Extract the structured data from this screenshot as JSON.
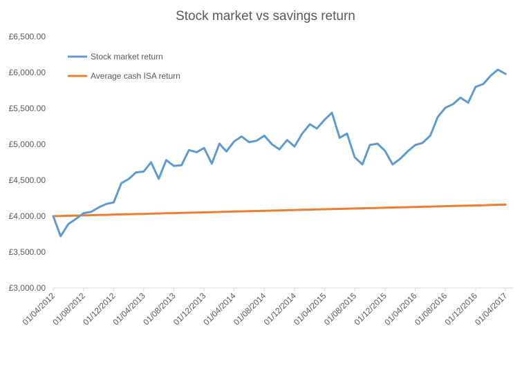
{
  "chart_data": {
    "type": "line",
    "title": "Stock market vs savings return",
    "xlabel": "",
    "ylabel": "",
    "ylim": [
      3000,
      6500
    ],
    "yticks": [
      3000,
      3500,
      4000,
      4500,
      5000,
      5500,
      6000,
      6500
    ],
    "ytick_labels": [
      "£3,000.00",
      "£3,500.00",
      "£4,000.00",
      "£4,500.00",
      "£5,000.00",
      "£5,500.00",
      "£6,000.00",
      "£6,500.00"
    ],
    "x_tick_labels": [
      "01/04/2012",
      "01/08/2012",
      "01/12/2012",
      "01/04/2013",
      "01/08/2013",
      "01/12/2013",
      "01/04/2014",
      "01/08/2014",
      "01/12/2014",
      "01/04/2015",
      "01/08/2015",
      "01/12/2015",
      "01/04/2016",
      "01/08/2016",
      "01/12/2016",
      "01/04/2017"
    ],
    "x_start": "01/04/2012",
    "x_end": "01/05/2017",
    "grid": false,
    "legend": "top-left",
    "series": [
      {
        "name": "Stock market return",
        "color": "#5b9bd5",
        "values": [
          4000,
          3720,
          3890,
          3960,
          4040,
          4060,
          4120,
          4170,
          4190,
          4460,
          4520,
          4610,
          4620,
          4750,
          4520,
          4780,
          4700,
          4710,
          4920,
          4890,
          4950,
          4730,
          5010,
          4900,
          5040,
          5110,
          5030,
          5050,
          5120,
          5000,
          4930,
          5060,
          4970,
          5150,
          5280,
          5220,
          5340,
          5440,
          5090,
          5150,
          4820,
          4720,
          4990,
          5010,
          4910,
          4720,
          4800,
          4900,
          4990,
          5020,
          5120,
          5380,
          5510,
          5560,
          5650,
          5580,
          5800,
          5840,
          5960,
          6040,
          5980
        ]
      },
      {
        "name": "Average cash ISA return",
        "color": "#ed7d31",
        "start": 4000,
        "end": 4160,
        "points": 61
      }
    ]
  }
}
